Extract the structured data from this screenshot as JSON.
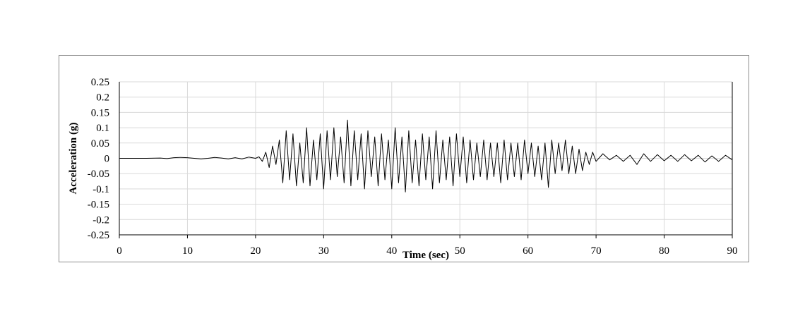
{
  "chart_data": {
    "type": "line",
    "title": "",
    "xlabel": "Time (sec)",
    "ylabel": "Acceleration (g)",
    "xlim": [
      0,
      90
    ],
    "ylim": [
      -0.25,
      0.25
    ],
    "x_ticks": [
      0,
      10,
      20,
      30,
      40,
      50,
      60,
      70,
      80,
      90
    ],
    "y_ticks": [
      0.25,
      0.2,
      0.15,
      0.1,
      0.05,
      0,
      -0.05,
      -0.1,
      -0.15,
      -0.2,
      -0.25
    ],
    "x_tick_labels": [
      "0",
      "10",
      "20",
      "30",
      "40",
      "50",
      "60",
      "70",
      "80",
      "90"
    ],
    "y_tick_labels": [
      "0.25",
      "0.2",
      "0.15",
      "0.1",
      "0.05",
      "0",
      "-0.05",
      "-0.1",
      "-0.15",
      "-0.2",
      "-0.25"
    ],
    "grid": true,
    "legend": "none",
    "line_color": "#000000",
    "grid_color": "#d9d9d9",
    "series": [
      {
        "x": [
          0,
          2,
          4,
          6,
          7,
          8,
          9,
          10,
          11,
          12,
          13,
          14,
          15,
          16,
          17,
          18,
          19,
          20,
          20.5,
          21,
          21.5,
          22,
          22.5,
          23,
          23.5,
          24,
          24.5,
          25,
          25.5,
          26,
          26.5,
          27,
          27.5,
          28,
          28.5,
          29,
          29.5,
          30,
          30.5,
          31,
          31.5,
          32,
          32.5,
          33,
          33.5,
          34,
          34.5,
          35,
          35.5,
          36,
          36.5,
          37,
          37.5,
          38,
          38.5,
          39,
          39.5,
          40,
          40.5,
          41,
          41.5,
          42,
          42.5,
          43,
          43.5,
          44,
          44.5,
          45,
          45.5,
          46,
          46.5,
          47,
          47.5,
          48,
          48.5,
          49,
          49.5,
          50,
          50.5,
          51,
          51.5,
          52,
          52.5,
          53,
          53.5,
          54,
          54.5,
          55,
          55.5,
          56,
          56.5,
          57,
          57.5,
          58,
          58.5,
          59,
          59.5,
          60,
          60.5,
          61,
          61.5,
          62,
          62.5,
          63,
          63.5,
          64,
          64.5,
          65,
          65.5,
          66,
          66.5,
          67,
          67.5,
          68,
          68.5,
          69,
          69.5,
          70,
          71,
          72,
          73,
          74,
          75,
          76,
          77,
          78,
          79,
          80,
          81,
          82,
          83,
          84,
          85,
          86,
          87,
          88,
          89,
          90
        ],
        "y": [
          0,
          0,
          0,
          0.001,
          -0.001,
          0.002,
          0.003,
          0.002,
          0,
          -0.002,
          0,
          0.003,
          0.001,
          -0.002,
          0.002,
          -0.002,
          0.004,
          0,
          0.005,
          -0.01,
          0.02,
          -0.03,
          0.04,
          -0.02,
          0.06,
          -0.08,
          0.09,
          -0.07,
          0.08,
          -0.09,
          0.05,
          -0.08,
          0.1,
          -0.09,
          0.06,
          -0.07,
          0.08,
          -0.1,
          0.09,
          -0.07,
          0.1,
          -0.06,
          0.07,
          -0.08,
          0.125,
          -0.09,
          0.09,
          -0.07,
          0.08,
          -0.1,
          0.09,
          -0.06,
          0.07,
          -0.09,
          0.08,
          -0.07,
          0.06,
          -0.1,
          0.1,
          -0.08,
          0.07,
          -0.11,
          0.09,
          -0.08,
          0.06,
          -0.09,
          0.08,
          -0.07,
          0.07,
          -0.1,
          0.09,
          -0.08,
          0.06,
          -0.07,
          0.07,
          -0.09,
          0.08,
          -0.06,
          0.07,
          -0.08,
          0.06,
          -0.07,
          0.05,
          -0.06,
          0.06,
          -0.07,
          0.05,
          -0.06,
          0.05,
          -0.08,
          0.06,
          -0.07,
          0.05,
          -0.06,
          0.05,
          -0.07,
          0.06,
          -0.05,
          0.05,
          -0.06,
          0.04,
          -0.07,
          0.05,
          -0.095,
          0.06,
          -0.05,
          0.05,
          -0.04,
          0.06,
          -0.05,
          0.04,
          -0.05,
          0.03,
          -0.04,
          0.02,
          -0.02,
          0.02,
          -0.01,
          0.015,
          -0.005,
          0.01,
          -0.01,
          0.01,
          -0.02,
          0.015,
          -0.01,
          0.012,
          -0.008,
          0.01,
          -0.01,
          0.012,
          -0.008,
          0.01,
          -0.012,
          0.008,
          -0.01,
          0.01,
          -0.005
        ]
      }
    ]
  }
}
